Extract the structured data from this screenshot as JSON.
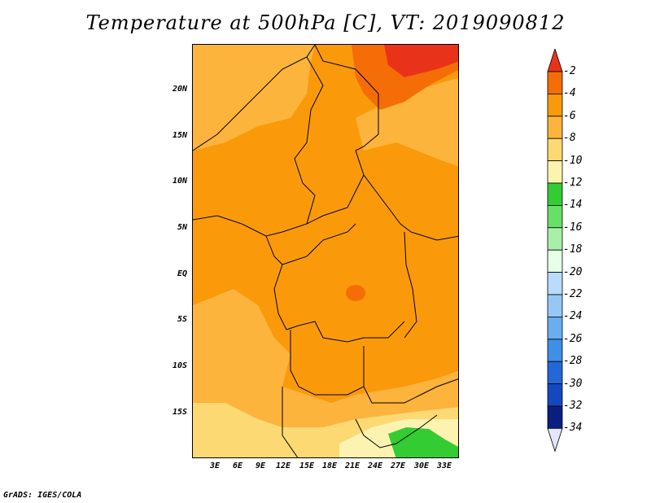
{
  "title": "Temperature at 500hPa [C], VT: 2019090812",
  "credit": "GrADS: IGES/COLA",
  "lat_labels": [
    "20N",
    "15N",
    "10N",
    "5N",
    "EQ",
    "5S",
    "10S",
    "15S"
  ],
  "lon_labels": [
    "3E",
    "6E",
    "9E",
    "12E",
    "15E",
    "18E",
    "21E",
    "24E",
    "27E",
    "30E",
    "33E"
  ],
  "colorbar": {
    "levels": [
      "-2",
      "-4",
      "-6",
      "-8",
      "-10",
      "-12",
      "-14",
      "-16",
      "-18",
      "-20",
      "-22",
      "-24",
      "-26",
      "-28",
      "-30",
      "-32",
      "-34"
    ],
    "colors": [
      "#e8331a",
      "#f56d06",
      "#fa9a0a",
      "#fcb43c",
      "#fdd974",
      "#fdf3b0",
      "#33cc33",
      "#66e066",
      "#a8f0a8",
      "#e6ffe6",
      "#b8dcfa",
      "#97c8f5",
      "#6aaef0",
      "#3f8ee8",
      "#2468d8",
      "#1448c0",
      "#0a1e80",
      "#e6e6fa"
    ]
  },
  "colors": {
    "orange_main": "#fa9a0a",
    "orange_light": "#fcb43c",
    "yellow_pale": "#fdd974",
    "red_orange": "#f56d06",
    "green": "#33cc33"
  }
}
